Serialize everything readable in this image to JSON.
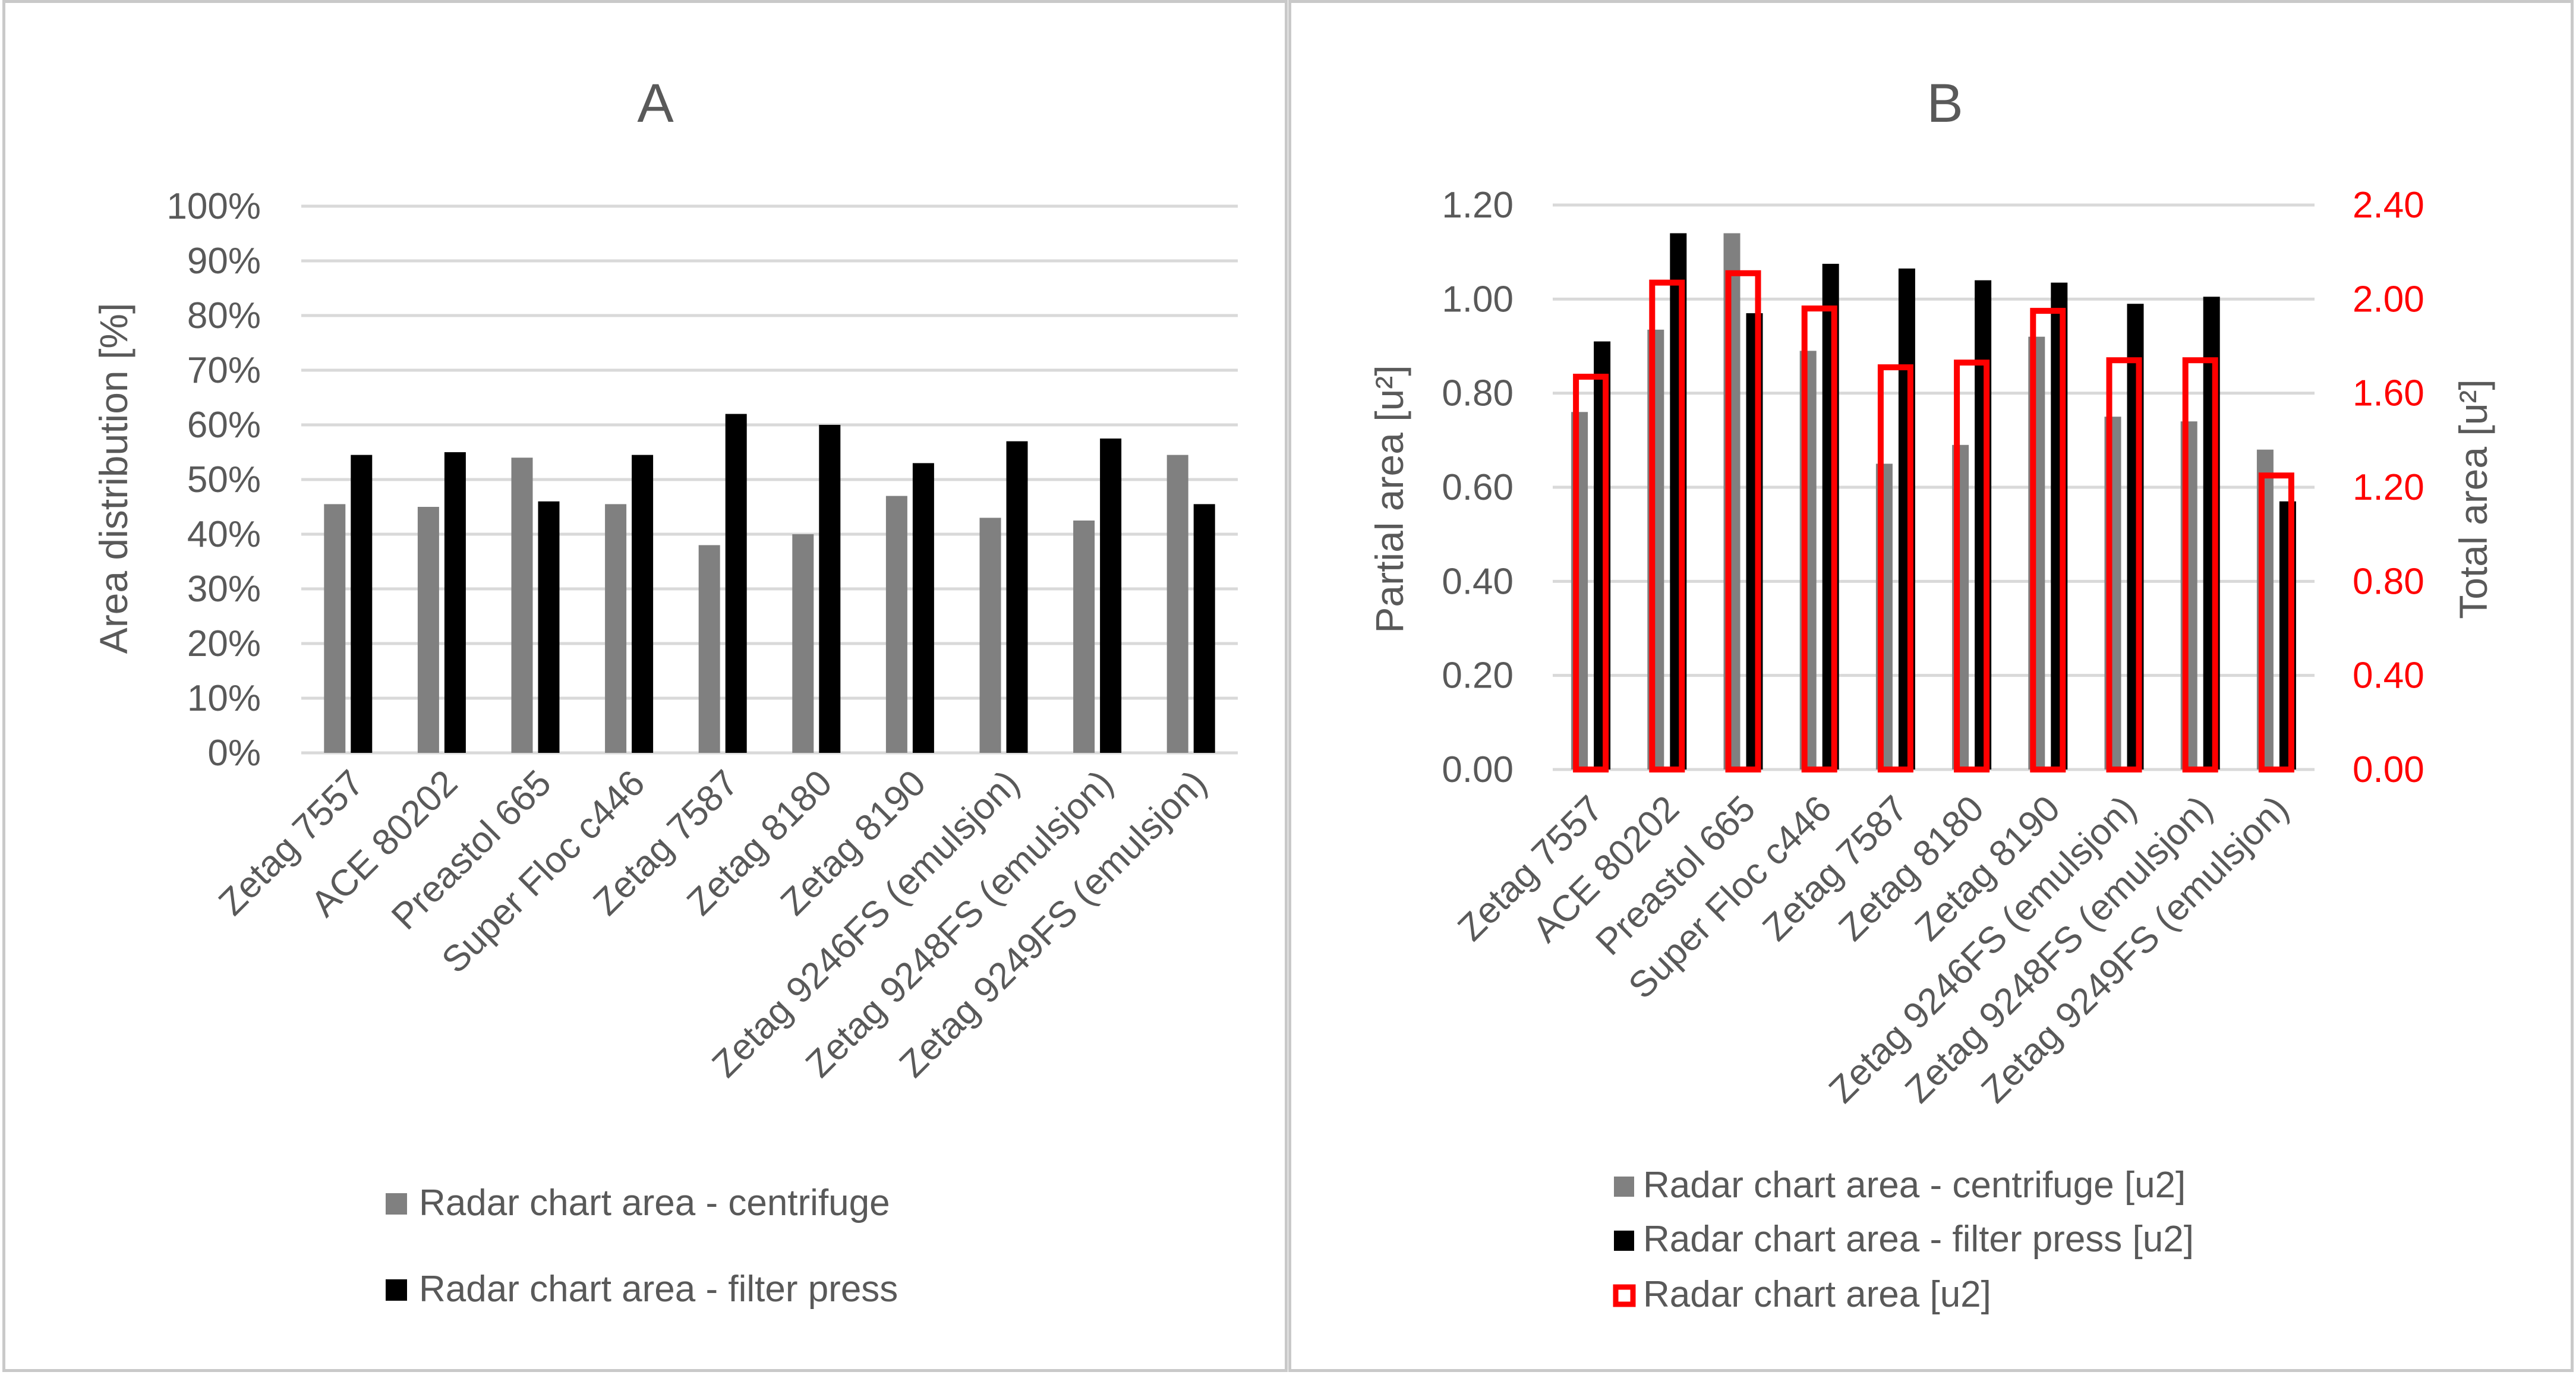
{
  "colors": {
    "centrifuge": "#808080",
    "filter_press": "#000000",
    "total": "#ff0000",
    "grid": "#d9d9d9",
    "text": "#595959"
  },
  "chart_data": [
    {
      "type": "bar",
      "title": "A",
      "ylabel": "Area distribution [%]",
      "ylim": [
        0,
        100
      ],
      "y_ticks": [
        "0%",
        "10%",
        "20%",
        "30%",
        "40%",
        "50%",
        "60%",
        "70%",
        "80%",
        "90%",
        "100%"
      ],
      "categories": [
        "Zetag 7557",
        "ACE 80202",
        "Preastol 665",
        "Super Floc c446",
        "Zetag 7587",
        "Zetag 8180",
        "Zetag 8190",
        "Zetag 9246FS (emulsjon)",
        "Zetag 9248FS (emulsjon)",
        "Zetag 9249FS (emulsjon)"
      ],
      "series": [
        {
          "name": "Radar chart area - centrifuge",
          "values": [
            45.5,
            45,
            54,
            45.5,
            38,
            40,
            47,
            43,
            42.5,
            54.5
          ]
        },
        {
          "name": "Radar chart area - filter press",
          "values": [
            54.5,
            55,
            46,
            54.5,
            62,
            60,
            53,
            57,
            57.5,
            45.5
          ]
        }
      ],
      "legend_position": "bottom",
      "grid": true
    },
    {
      "type": "bar",
      "title": "B",
      "ylabel": "Partial area [u²]",
      "y2label": "Total area [u²]",
      "ylim": [
        0,
        1.2
      ],
      "y2lim": [
        0,
        2.4
      ],
      "y_ticks": [
        "0.00",
        "0.20",
        "0.40",
        "0.60",
        "0.80",
        "1.00",
        "1.20"
      ],
      "y2_ticks": [
        "0.00",
        "0.40",
        "0.80",
        "1.20",
        "1.60",
        "2.00",
        "2.40"
      ],
      "categories": [
        "Zetag 7557",
        "ACE 80202",
        "Preastol 665",
        "Super Floc c446",
        "Zetag 7587",
        "Zetag 8180",
        "Zetag 8190",
        "Zetag 9246FS (emulsjon)",
        "Zetag 9248FS (emulsjon)",
        "Zetag 9249FS (emulsjon)"
      ],
      "series": [
        {
          "name": "Radar chart area - centrifuge [u2]",
          "axis": "left",
          "values": [
            0.76,
            0.935,
            1.14,
            0.89,
            0.65,
            0.69,
            0.92,
            0.75,
            0.74,
            0.68
          ]
        },
        {
          "name": "Radar chart area - filter press [u2]",
          "axis": "left",
          "values": [
            0.91,
            1.14,
            0.97,
            1.075,
            1.065,
            1.04,
            1.035,
            0.99,
            1.005,
            0.57
          ]
        },
        {
          "name": "Radar chart area [u2]",
          "axis": "right",
          "values": [
            1.67,
            2.07,
            2.11,
            1.96,
            1.71,
            1.73,
            1.95,
            1.74,
            1.74,
            1.25
          ]
        }
      ],
      "legend_position": "bottom",
      "grid": true
    }
  ]
}
